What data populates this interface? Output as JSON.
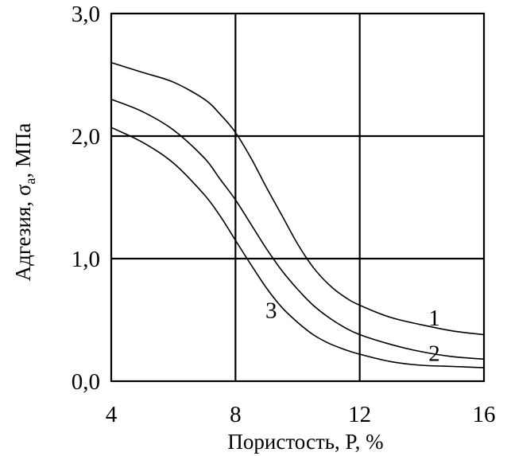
{
  "chart_data": {
    "type": "line",
    "xlabel": "Пористость, P, %",
    "ylabel_main": "Адгезия, σ",
    "ylabel_sub": "a",
    "ylabel_unit": ", МПа",
    "xlim": [
      4,
      16
    ],
    "ylim": [
      0,
      3
    ],
    "grid": true,
    "x_ticks": [
      {
        "value": 4,
        "label": "4"
      },
      {
        "value": 8,
        "label": "8"
      },
      {
        "value": 12,
        "label": "12"
      },
      {
        "value": 16,
        "label": "16"
      }
    ],
    "y_ticks": [
      {
        "value": 0,
        "label": "0,0"
      },
      {
        "value": 1,
        "label": "1,0"
      },
      {
        "value": 2,
        "label": "2,0"
      },
      {
        "value": 3,
        "label": "3,0"
      }
    ],
    "series": [
      {
        "name": "1",
        "x": [
          4,
          5,
          6,
          7,
          7.5,
          8,
          8.5,
          9,
          9.5,
          10,
          10.5,
          11,
          11.5,
          12,
          13,
          14,
          15,
          16
        ],
        "y": [
          2.6,
          2.52,
          2.44,
          2.3,
          2.18,
          2.03,
          1.82,
          1.58,
          1.35,
          1.12,
          0.93,
          0.79,
          0.69,
          0.62,
          0.52,
          0.46,
          0.41,
          0.38
        ]
      },
      {
        "name": "2",
        "x": [
          4,
          5,
          6,
          7,
          7.5,
          8,
          8.5,
          9,
          9.5,
          10,
          10.5,
          11,
          11.5,
          12,
          13,
          14,
          15,
          16
        ],
        "y": [
          2.3,
          2.2,
          2.05,
          1.82,
          1.65,
          1.48,
          1.28,
          1.08,
          0.9,
          0.75,
          0.62,
          0.52,
          0.44,
          0.38,
          0.3,
          0.24,
          0.2,
          0.18
        ]
      },
      {
        "name": "3",
        "x": [
          4,
          5,
          6,
          7,
          7.5,
          8,
          8.5,
          9,
          9.5,
          10,
          10.5,
          11,
          11.5,
          12,
          13,
          14,
          15,
          16
        ],
        "y": [
          2.07,
          1.95,
          1.78,
          1.52,
          1.35,
          1.15,
          0.95,
          0.76,
          0.6,
          0.48,
          0.38,
          0.31,
          0.26,
          0.22,
          0.16,
          0.13,
          0.12,
          0.11
        ]
      }
    ],
    "curve_labels": [
      {
        "text": "1",
        "x": 14.4,
        "y": 0.52
      },
      {
        "text": "2",
        "x": 14.4,
        "y": 0.23
      },
      {
        "text": "3",
        "x": 9.15,
        "y": 0.58
      }
    ]
  }
}
